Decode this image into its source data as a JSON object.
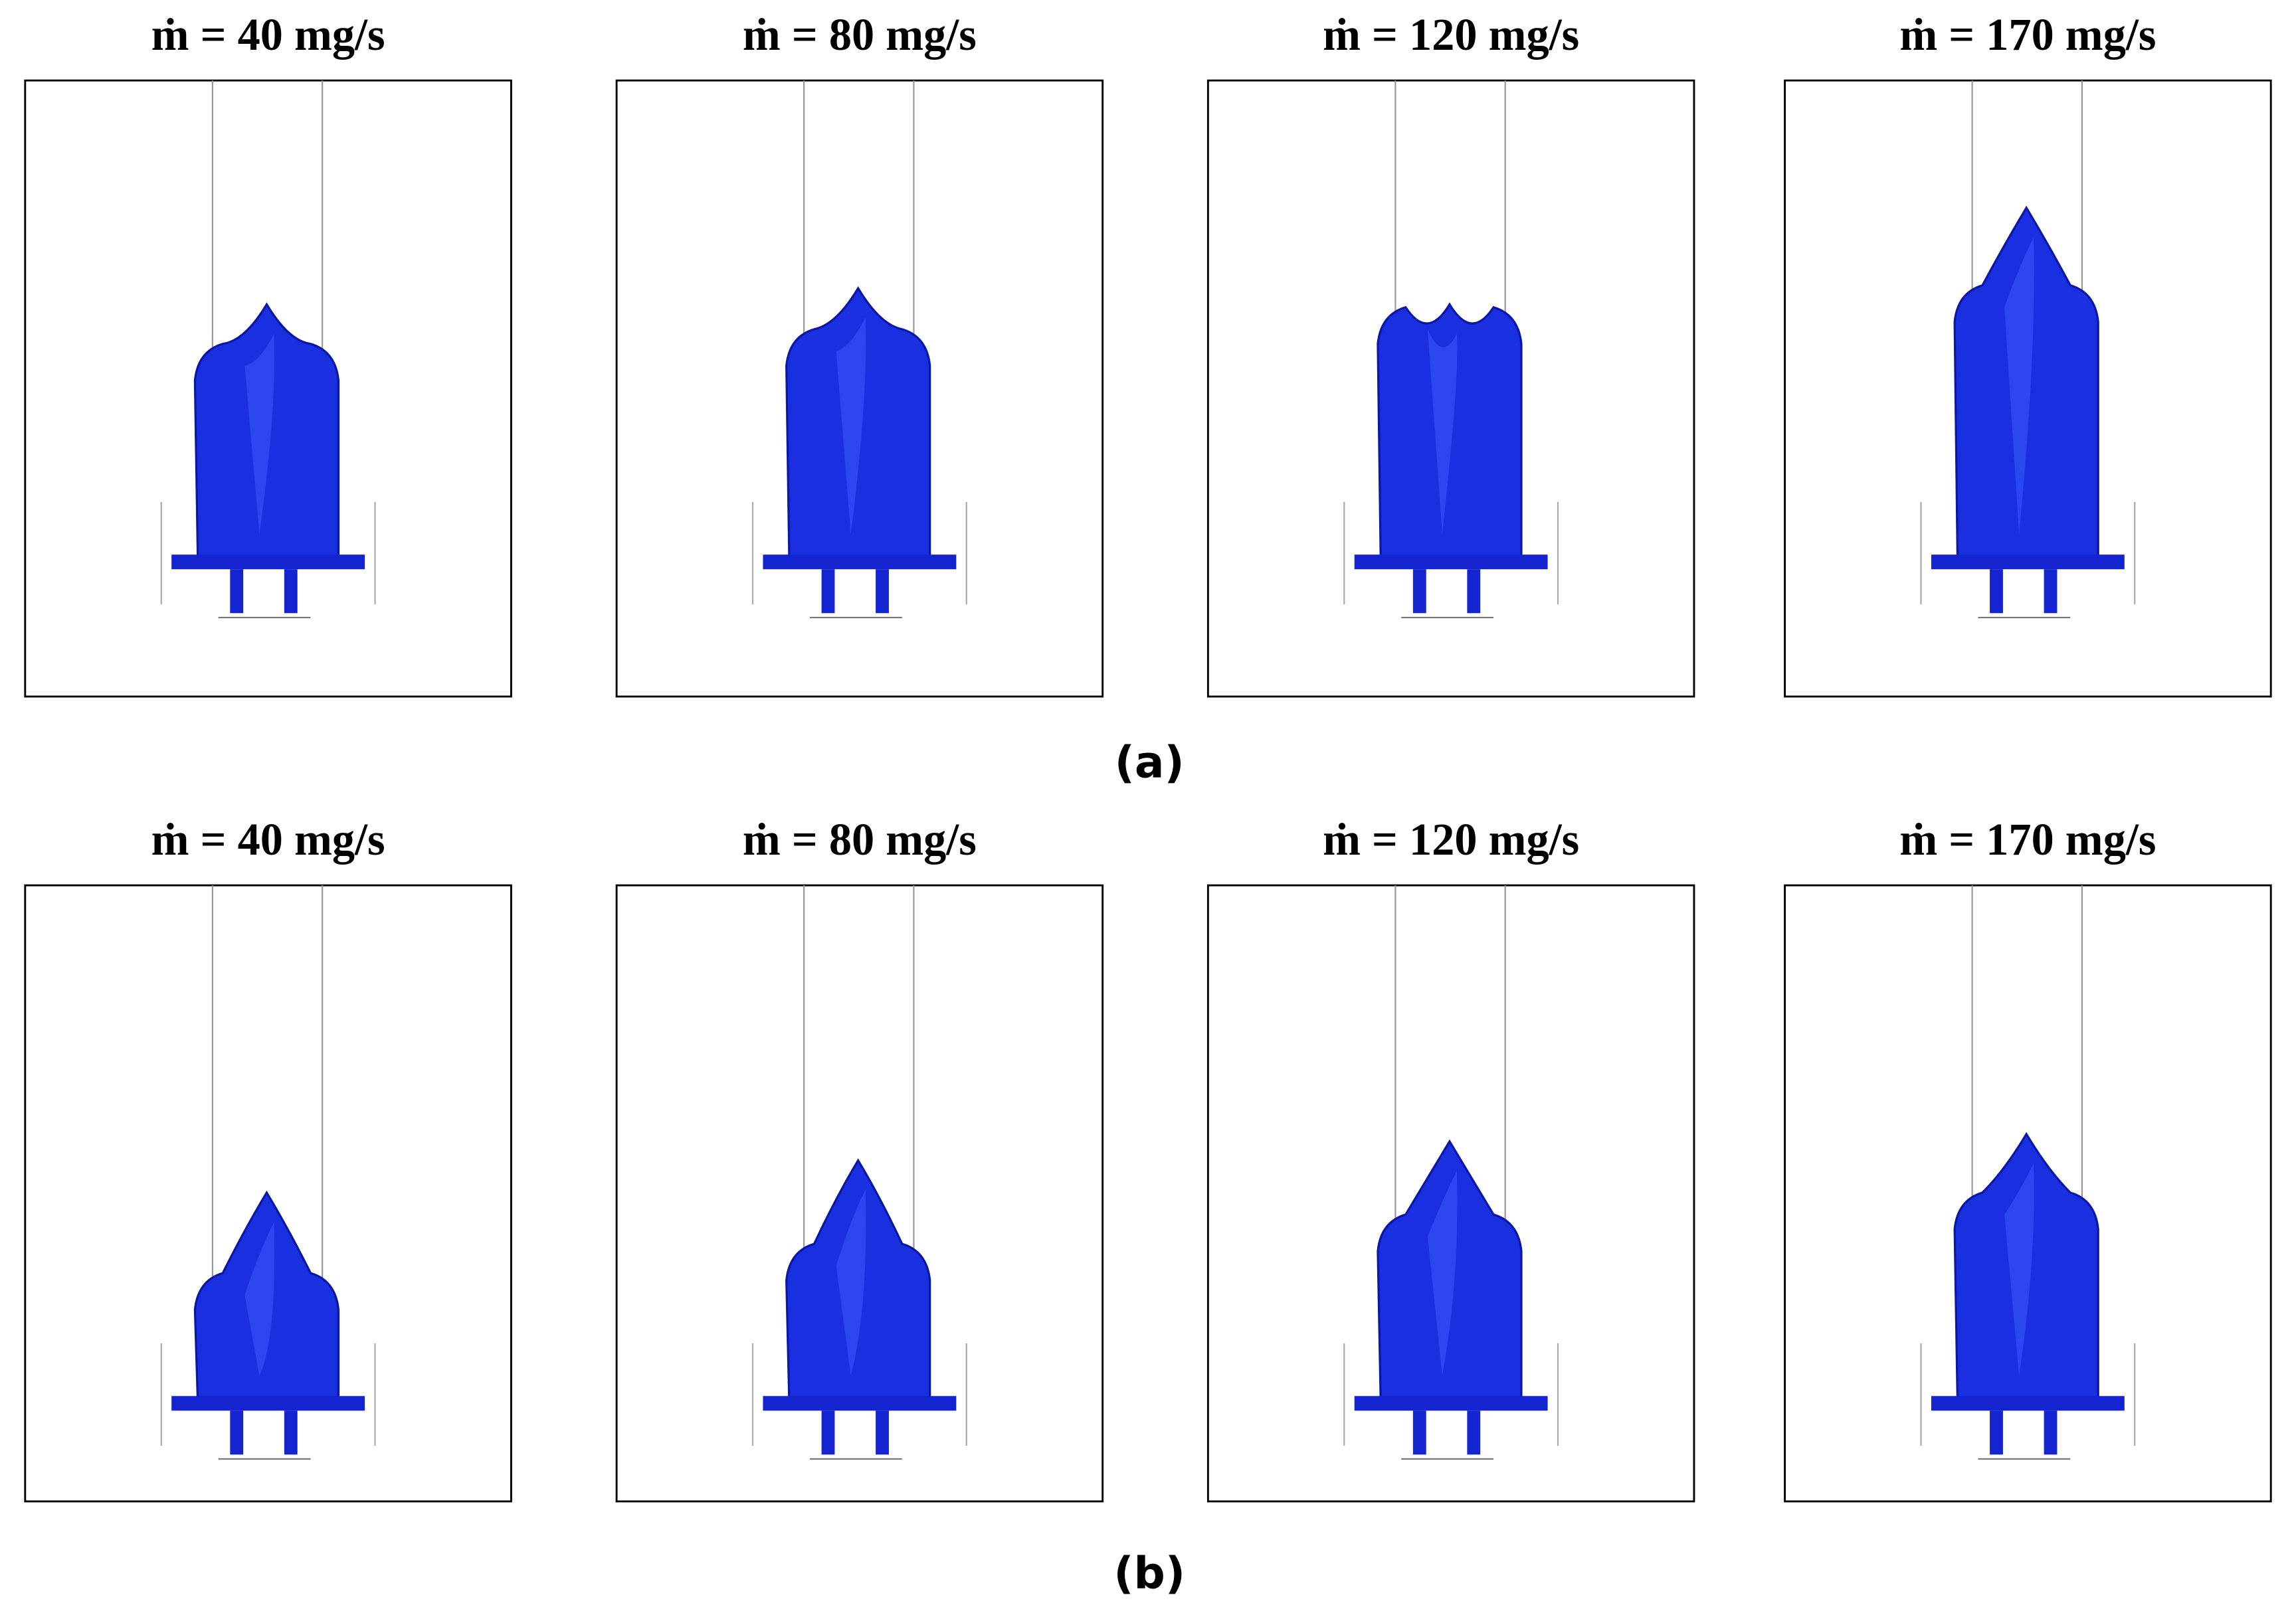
{
  "rows": [
    {
      "label": "(a)",
      "panels": [
        {
          "title": "ṁ = 40 mg/s"
        },
        {
          "title": "ṁ = 80 mg/s"
        },
        {
          "title": "ṁ = 120 mg/s"
        },
        {
          "title": "ṁ = 170 mg/s"
        }
      ]
    },
    {
      "label": "(b)",
      "panels": [
        {
          "title": "ṁ = 40 mg/s"
        },
        {
          "title": "ṁ = 80 mg/s"
        },
        {
          "title": "ṁ = 120 mg/s"
        },
        {
          "title": "ṁ = 170 mg/s"
        }
      ]
    }
  ]
}
